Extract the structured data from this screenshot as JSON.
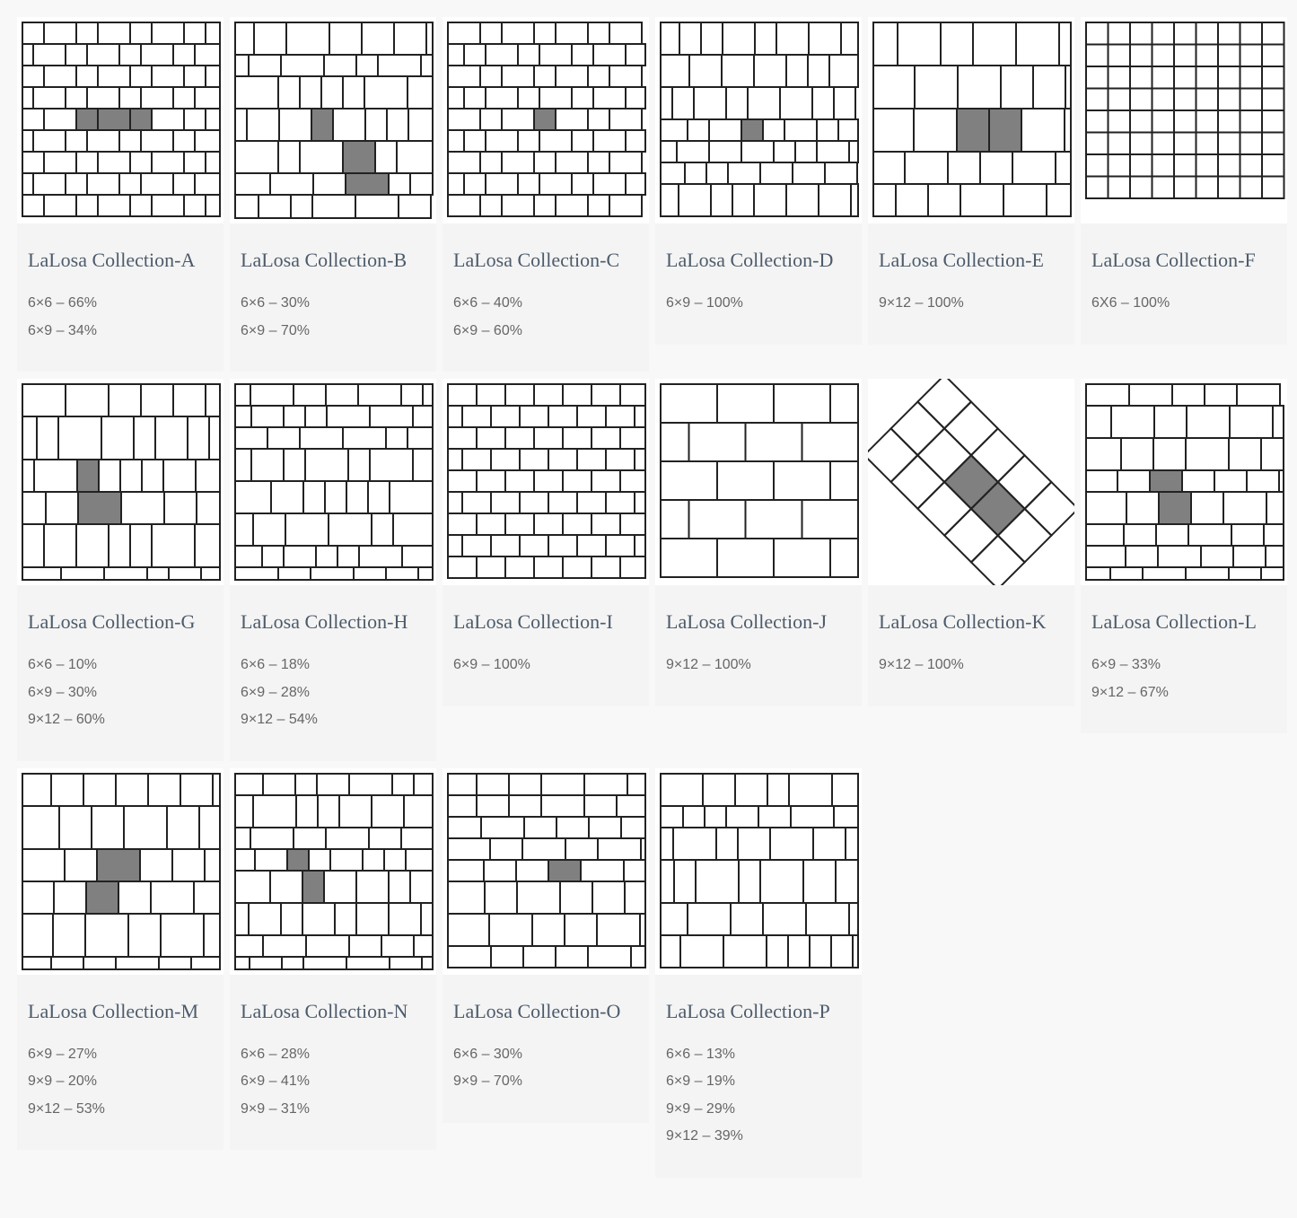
{
  "cards": [
    {
      "title": "LaLosa Collection-A",
      "specs": [
        "6×6 – 66%",
        "6×9 – 34%"
      ]
    },
    {
      "title": "LaLosa Collection-B",
      "specs": [
        "6×6 – 30%",
        "6×9 – 70%"
      ]
    },
    {
      "title": "LaLosa Collection-C",
      "specs": [
        "6×6 – 40%",
        "6×9 – 60%"
      ]
    },
    {
      "title": "LaLosa Collection-D",
      "specs": [
        "6×9 – 100%"
      ]
    },
    {
      "title": "LaLosa Collection-E",
      "specs": [
        "9×12 – 100%"
      ]
    },
    {
      "title": "LaLosa Collection-F",
      "specs": [
        "6X6 – 100%"
      ]
    },
    {
      "title": "LaLosa Collection-G",
      "specs": [
        "6×6 – 10%",
        "6×9 – 30%",
        "9×12 – 60%"
      ]
    },
    {
      "title": "LaLosa Collection-H",
      "specs": [
        "6×6 – 18%",
        "6×9 – 28%",
        "9×12 – 54%"
      ]
    },
    {
      "title": "LaLosa Collection-I",
      "specs": [
        "6×9 – 100%"
      ]
    },
    {
      "title": "LaLosa Collection-J",
      "specs": [
        "9×12 – 100%"
      ]
    },
    {
      "title": "LaLosa Collection-K",
      "specs": [
        "9×12 – 100%"
      ]
    },
    {
      "title": "LaLosa Collection-L",
      "specs": [
        "6×9 – 33%",
        "9×12 – 67%"
      ]
    },
    {
      "title": "LaLosa Collection-M",
      "specs": [
        "6×9 – 27%",
        "9×9 – 20%",
        "9×12 – 53%"
      ]
    },
    {
      "title": "LaLosa Collection-N",
      "specs": [
        "6×6 – 28%",
        "6×9 – 41%",
        "9×9 – 31%"
      ]
    },
    {
      "title": "LaLosa Collection-O",
      "specs": [
        "6×6 – 30%",
        "9×9 – 70%"
      ]
    },
    {
      "title": "LaLosa Collection-P",
      "specs": [
        "6×6 – 13%",
        "6×9 – 19%",
        "9×9 – 29%",
        "9×12 – 39%"
      ]
    }
  ]
}
